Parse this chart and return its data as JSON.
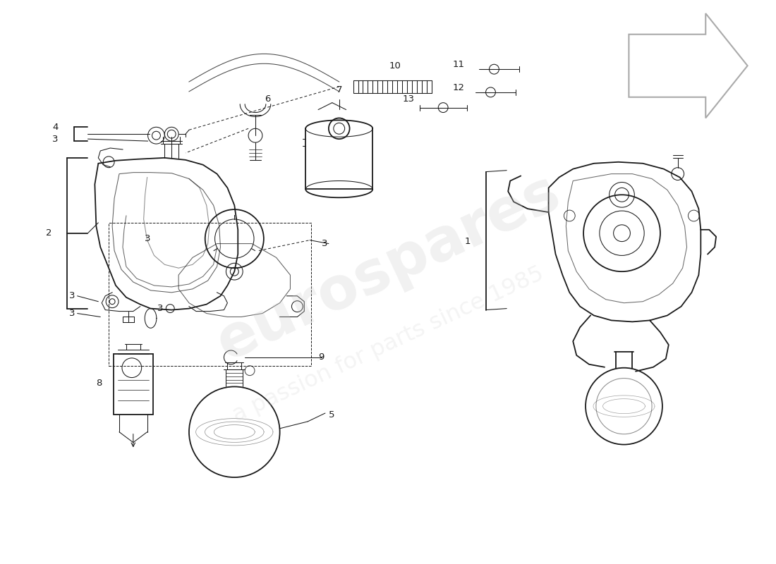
{
  "bg_color": "#ffffff",
  "line_color": "#1a1a1a",
  "watermark1": "eurospares",
  "watermark2": "a passion for parts since 1985",
  "figsize": [
    11.0,
    8.0
  ],
  "dpi": 100,
  "arrow_color": "#aaaaaa",
  "lw_main": 1.3,
  "lw_thin": 0.75,
  "lw_dashed": 0.7,
  "label_fs": 9.5
}
